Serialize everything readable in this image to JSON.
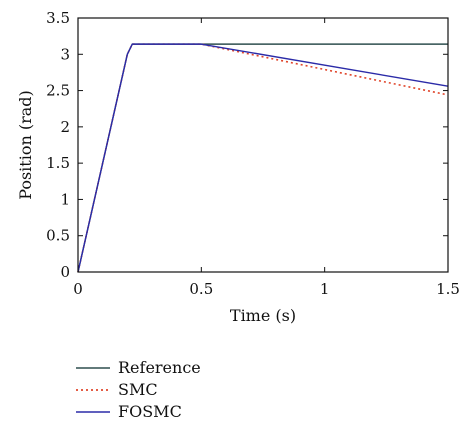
{
  "chart_data": {
    "type": "line",
    "title": "",
    "xlabel": "Time (s)",
    "ylabel": "Position (rad)",
    "xlim": [
      0,
      1.5
    ],
    "ylim": [
      0,
      3.5
    ],
    "xticks": [
      0,
      0.5,
      1,
      1.5
    ],
    "xtick_labels": [
      "0",
      "0.5",
      "1",
      "1.5"
    ],
    "yticks": [
      0,
      0.5,
      1,
      1.5,
      2,
      2.5,
      3,
      3.5
    ],
    "ytick_labels": [
      "0",
      "0.5",
      "1",
      "1.5",
      "2",
      "2.5",
      "3",
      "3.5"
    ],
    "grid": false,
    "legend_position": "bottom-left, below plot",
    "series": [
      {
        "name": "Reference",
        "color": "#2f4f4f",
        "style": "solid",
        "x": [
          0,
          0.2,
          0.22,
          0.5,
          1.5
        ],
        "y": [
          0,
          3.0,
          3.14,
          3.14,
          3.14
        ]
      },
      {
        "name": "SMC",
        "color": "#e0452b",
        "style": "dotted",
        "x": [
          0,
          0.2,
          0.22,
          0.5,
          1.5
        ],
        "y": [
          0,
          3.0,
          3.14,
          3.14,
          2.44
        ]
      },
      {
        "name": "FOSMC",
        "color": "#2b2ba8",
        "style": "solid",
        "x": [
          0,
          0.2,
          0.22,
          0.5,
          1.5
        ],
        "y": [
          0,
          3.0,
          3.14,
          3.14,
          2.56
        ]
      }
    ]
  }
}
